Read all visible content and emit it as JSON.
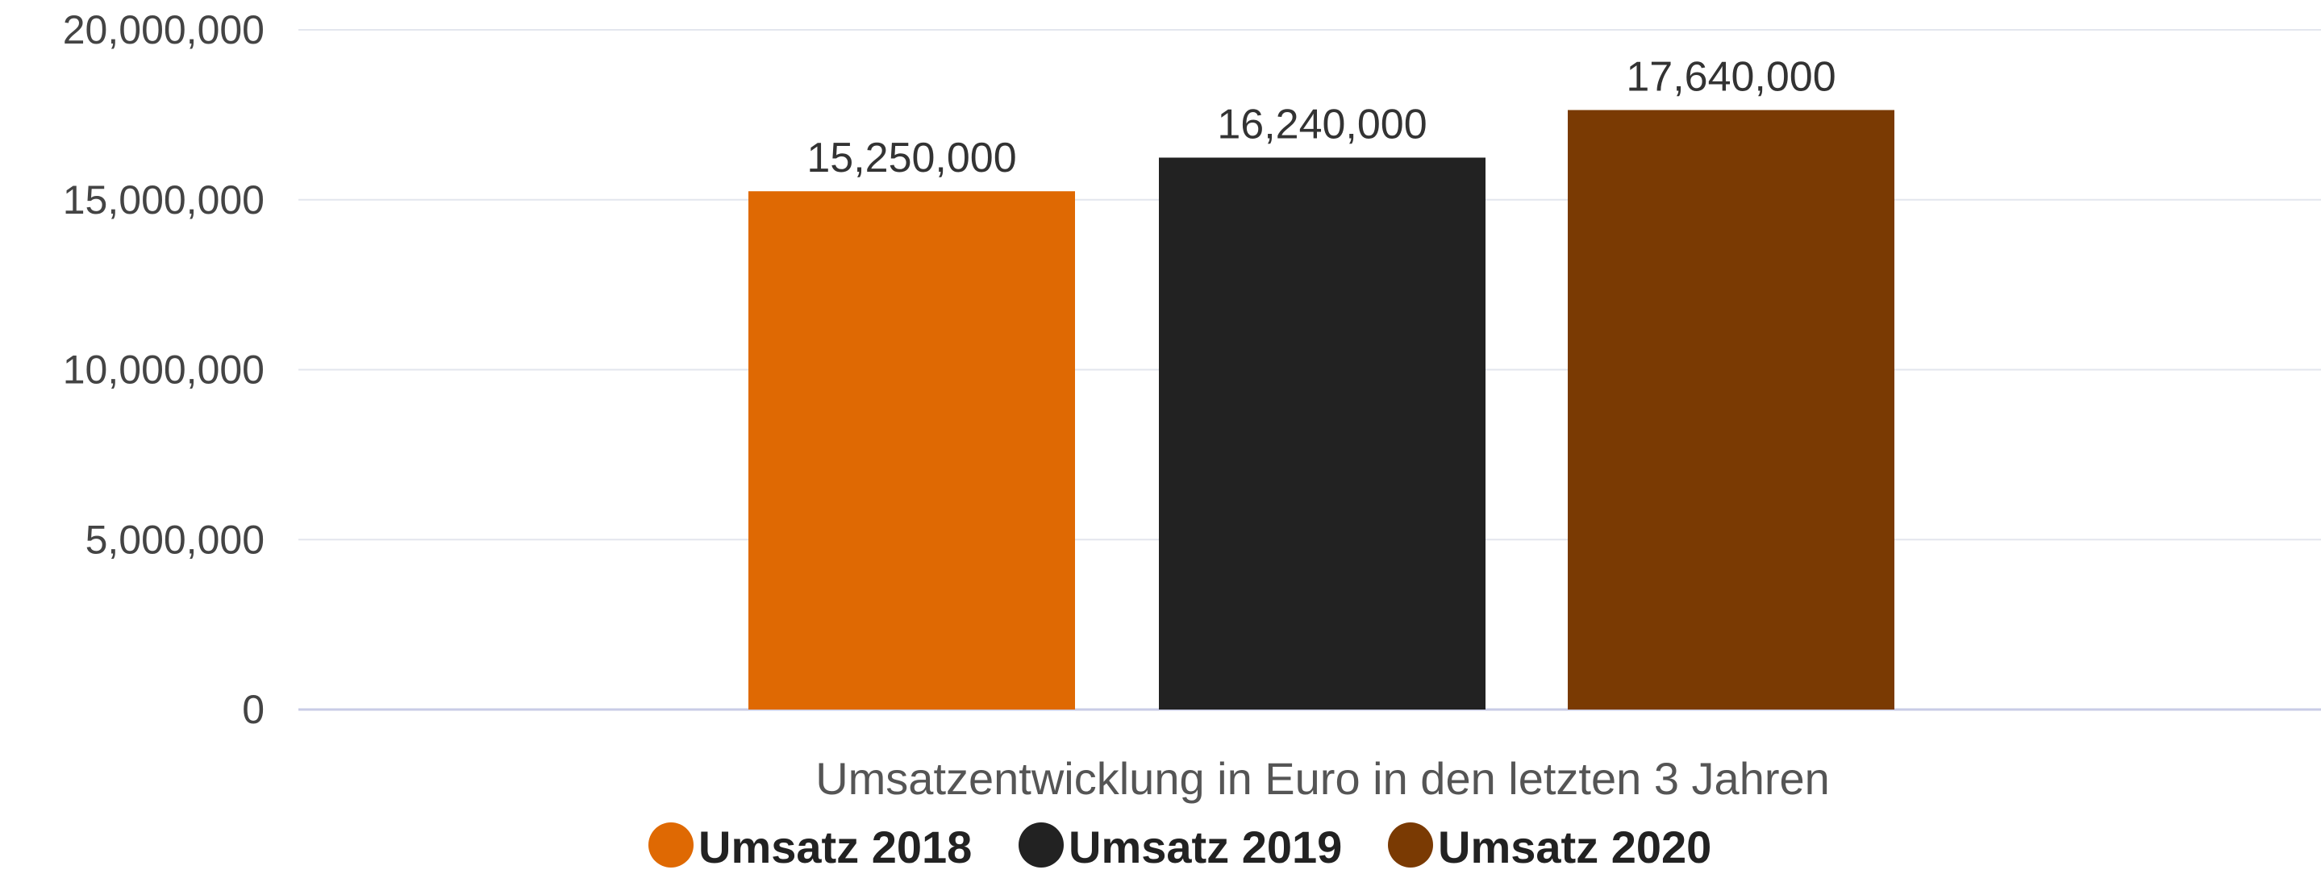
{
  "chart_data": {
    "type": "bar",
    "xlabel": "Umsatzentwicklung in Euro in den letzten 3 Jahren",
    "ylabel": "",
    "ylim": [
      0,
      20000000
    ],
    "yticks": [
      0,
      5000000,
      10000000,
      15000000,
      20000000
    ],
    "ytick_labels": [
      "0",
      "5,000,000",
      "10,000,000",
      "15,000,000",
      "20,000,000"
    ],
    "grid": true,
    "legend_position": "bottom",
    "series": [
      {
        "name": "Umsatz 2018",
        "value": 15250000,
        "label": "15,250,000",
        "color": "#DF6903"
      },
      {
        "name": "Umsatz 2019",
        "value": 16240000,
        "label": "16,240,000",
        "color": "#222222"
      },
      {
        "name": "Umsatz 2020",
        "value": 17640000,
        "label": "17,640,000",
        "color": "#7A3A03"
      }
    ]
  }
}
